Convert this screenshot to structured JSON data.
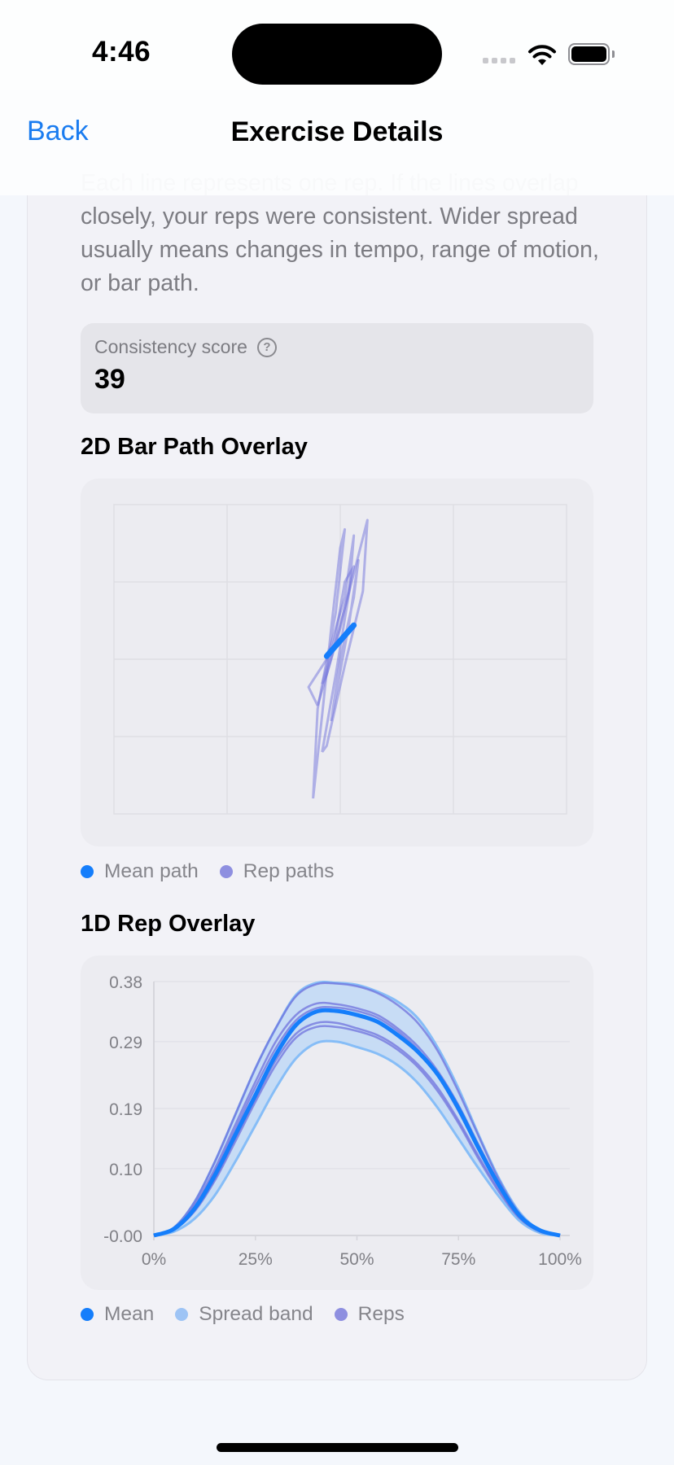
{
  "status_bar": {
    "time": "4:46",
    "icons": [
      "cellular-signal-icon",
      "wifi-icon",
      "battery-icon"
    ]
  },
  "nav": {
    "back_label": "Back",
    "title": "Exercise Details"
  },
  "description": {
    "text": "Each line represents one rep. If the lines overlap closely, your reps were consistent. Wider spread usually means changes in tempo, range of motion, or bar path."
  },
  "consistency": {
    "label": "Consistency score",
    "help_icon": "?",
    "value": "39"
  },
  "bar_path_section": {
    "title": "2D Bar Path Overlay",
    "legend": [
      {
        "label": "Mean path",
        "color": "#157efb"
      },
      {
        "label": "Rep paths",
        "color": "#8e8fe0"
      }
    ]
  },
  "rep_overlay_section": {
    "title": "1D Rep Overlay",
    "legend": [
      {
        "label": "Mean",
        "color": "#157efb"
      },
      {
        "label": "Spread band",
        "color": "#9ec4f5"
      },
      {
        "label": "Reps",
        "color": "#8e8fe0"
      }
    ]
  },
  "colors": {
    "accent": "#1a7cf0",
    "mean": "#157efb",
    "reps": "#6f71dc",
    "band_fill": "#c5dbf4",
    "band_edge": "#86bdf7"
  },
  "chart_data": [
    {
      "type": "scatter",
      "title": "2D Bar Path Overlay",
      "grid": true,
      "grid_cells": [
        4,
        4
      ],
      "axes_visible": false,
      "legend": [
        "Mean path",
        "Rep paths"
      ],
      "legend_position": "bottom",
      "series": [
        {
          "name": "Mean path",
          "points": [
            [
              0.47,
              0.51
            ],
            [
              0.53,
              0.61
            ]
          ]
        },
        {
          "name": "Rep 1",
          "points": [
            [
              0.44,
              0.05
            ],
            [
              0.46,
              0.32
            ],
            [
              0.48,
              0.6
            ],
            [
              0.5,
              0.86
            ],
            [
              0.51,
              0.92
            ],
            [
              0.49,
              0.65
            ],
            [
              0.45,
              0.34
            ],
            [
              0.44,
              0.05
            ]
          ]
        },
        {
          "name": "Rep 2",
          "points": [
            [
              0.45,
              0.35
            ],
            [
              0.43,
              0.41
            ],
            [
              0.47,
              0.5
            ],
            [
              0.51,
              0.7
            ],
            [
              0.53,
              0.9
            ],
            [
              0.52,
              0.72
            ],
            [
              0.47,
              0.45
            ],
            [
              0.45,
              0.35
            ]
          ]
        },
        {
          "name": "Rep 3",
          "points": [
            [
              0.46,
              0.2
            ],
            [
              0.49,
              0.45
            ],
            [
              0.52,
              0.72
            ],
            [
              0.56,
              0.95
            ],
            [
              0.55,
              0.72
            ],
            [
              0.51,
              0.48
            ],
            [
              0.47,
              0.22
            ],
            [
              0.46,
              0.2
            ]
          ]
        },
        {
          "name": "Rep 4",
          "points": [
            [
              0.48,
              0.3
            ],
            [
              0.5,
              0.5
            ],
            [
              0.53,
              0.7
            ],
            [
              0.54,
              0.82
            ],
            [
              0.52,
              0.62
            ],
            [
              0.49,
              0.38
            ],
            [
              0.48,
              0.3
            ]
          ]
        },
        {
          "name": "Rep 5",
          "points": [
            [
              0.46,
              0.42
            ],
            [
              0.49,
              0.58
            ],
            [
              0.51,
              0.75
            ],
            [
              0.53,
              0.8
            ],
            [
              0.5,
              0.6
            ],
            [
              0.47,
              0.45
            ],
            [
              0.46,
              0.42
            ]
          ]
        }
      ]
    },
    {
      "type": "line",
      "title": "1D Rep Overlay",
      "xlabel": "",
      "ylabel": "",
      "x_ticks": [
        "0%",
        "25%",
        "50%",
        "75%",
        "100%"
      ],
      "y_ticks": [
        "0.38",
        "0.29",
        "0.19",
        "0.10",
        "-0.00"
      ],
      "y_tick_values": [
        0.38,
        0.29,
        0.19,
        0.1,
        0.0
      ],
      "xlim": [
        0,
        100
      ],
      "ylim": [
        0,
        0.38
      ],
      "grid": true,
      "legend": [
        "Mean",
        "Spread band",
        "Reps"
      ],
      "legend_position": "bottom",
      "x": [
        0,
        5,
        10,
        15,
        20,
        25,
        30,
        35,
        40,
        45,
        50,
        55,
        60,
        65,
        70,
        75,
        80,
        85,
        90,
        95,
        100
      ],
      "series": [
        {
          "name": "Mean",
          "values": [
            0.0,
            0.01,
            0.04,
            0.09,
            0.15,
            0.21,
            0.27,
            0.315,
            0.335,
            0.336,
            0.33,
            0.32,
            0.3,
            0.275,
            0.24,
            0.19,
            0.13,
            0.075,
            0.03,
            0.008,
            0.0
          ]
        },
        {
          "name": "Band upper",
          "values": [
            0.0,
            0.012,
            0.05,
            0.11,
            0.18,
            0.25,
            0.31,
            0.36,
            0.378,
            0.378,
            0.375,
            0.365,
            0.35,
            0.325,
            0.28,
            0.22,
            0.15,
            0.085,
            0.035,
            0.008,
            0.0
          ]
        },
        {
          "name": "Band lower",
          "values": [
            0.0,
            0.006,
            0.025,
            0.06,
            0.11,
            0.165,
            0.22,
            0.265,
            0.288,
            0.29,
            0.282,
            0.272,
            0.255,
            0.228,
            0.19,
            0.145,
            0.1,
            0.058,
            0.022,
            0.004,
            0.0
          ]
        },
        {
          "name": "Rep 1",
          "values": [
            0.0,
            0.012,
            0.05,
            0.11,
            0.18,
            0.25,
            0.31,
            0.358,
            0.376,
            0.377,
            0.373,
            0.363,
            0.345,
            0.318,
            0.275,
            0.215,
            0.148,
            0.083,
            0.033,
            0.008,
            0.0
          ]
        },
        {
          "name": "Rep 2",
          "values": [
            0.0,
            0.01,
            0.045,
            0.1,
            0.165,
            0.23,
            0.29,
            0.33,
            0.347,
            0.346,
            0.34,
            0.33,
            0.31,
            0.283,
            0.245,
            0.195,
            0.135,
            0.078,
            0.031,
            0.007,
            0.0
          ]
        },
        {
          "name": "Rep 3",
          "values": [
            0.0,
            0.009,
            0.038,
            0.085,
            0.145,
            0.205,
            0.262,
            0.302,
            0.318,
            0.318,
            0.31,
            0.3,
            0.282,
            0.256,
            0.22,
            0.172,
            0.118,
            0.068,
            0.027,
            0.006,
            0.0
          ]
        },
        {
          "name": "Rep 4",
          "values": [
            0.0,
            0.009,
            0.036,
            0.082,
            0.14,
            0.2,
            0.255,
            0.296,
            0.312,
            0.312,
            0.306,
            0.296,
            0.278,
            0.252,
            0.215,
            0.168,
            0.114,
            0.065,
            0.026,
            0.006,
            0.0
          ]
        },
        {
          "name": "Rep 5",
          "values": [
            0.0,
            0.01,
            0.042,
            0.095,
            0.158,
            0.222,
            0.28,
            0.322,
            0.34,
            0.341,
            0.336,
            0.326,
            0.306,
            0.278,
            0.238,
            0.186,
            0.128,
            0.074,
            0.03,
            0.007,
            0.0
          ]
        }
      ]
    }
  ]
}
